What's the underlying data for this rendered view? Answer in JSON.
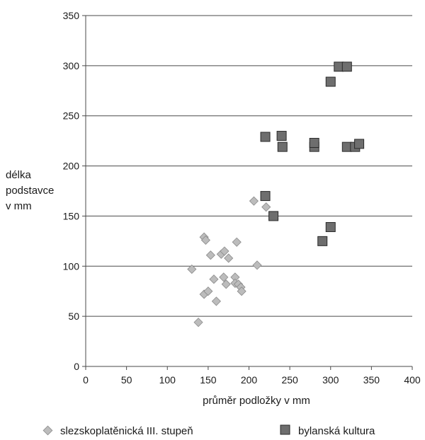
{
  "chart_data": {
    "type": "scatter",
    "xlabel": "průměr podložky v mm",
    "ylabel_lines": [
      "délka",
      "podstavce",
      "v mm"
    ],
    "xlim": [
      0,
      400
    ],
    "ylim": [
      0,
      350
    ],
    "x_ticks": [
      0,
      50,
      100,
      150,
      200,
      250,
      300,
      350,
      400
    ],
    "y_ticks": [
      0,
      50,
      100,
      150,
      200,
      250,
      300,
      350
    ],
    "grid": "horizontal",
    "legend_position": "bottom",
    "series": [
      {
        "name": "slezskoplatěnická III. stupeň",
        "marker": "diamond",
        "color": "#bcbcbc",
        "points": [
          {
            "x": 130,
            "y": 97
          },
          {
            "x": 138,
            "y": 44
          },
          {
            "x": 145,
            "y": 129
          },
          {
            "x": 147,
            "y": 126
          },
          {
            "x": 145,
            "y": 72
          },
          {
            "x": 150,
            "y": 75
          },
          {
            "x": 153,
            "y": 111
          },
          {
            "x": 157,
            "y": 87
          },
          {
            "x": 160,
            "y": 65
          },
          {
            "x": 166,
            "y": 112
          },
          {
            "x": 170,
            "y": 115
          },
          {
            "x": 169,
            "y": 89
          },
          {
            "x": 172,
            "y": 82
          },
          {
            "x": 175,
            "y": 108
          },
          {
            "x": 183,
            "y": 89
          },
          {
            "x": 183,
            "y": 83
          },
          {
            "x": 185,
            "y": 124
          },
          {
            "x": 187,
            "y": 82
          },
          {
            "x": 190,
            "y": 79
          },
          {
            "x": 191,
            "y": 75
          },
          {
            "x": 206,
            "y": 165
          },
          {
            "x": 210,
            "y": 101
          },
          {
            "x": 221,
            "y": 159
          }
        ]
      },
      {
        "name": "bylanská kultura",
        "marker": "square",
        "color": "#6e6e6e",
        "points": [
          {
            "x": 220,
            "y": 229
          },
          {
            "x": 240,
            "y": 230
          },
          {
            "x": 241,
            "y": 219
          },
          {
            "x": 280,
            "y": 219
          },
          {
            "x": 280,
            "y": 223
          },
          {
            "x": 220,
            "y": 170
          },
          {
            "x": 230,
            "y": 150
          },
          {
            "x": 300,
            "y": 284
          },
          {
            "x": 310,
            "y": 299
          },
          {
            "x": 320,
            "y": 299
          },
          {
            "x": 320,
            "y": 219
          },
          {
            "x": 330,
            "y": 219
          },
          {
            "x": 335,
            "y": 222
          },
          {
            "x": 300,
            "y": 139
          },
          {
            "x": 290,
            "y": 125
          }
        ]
      }
    ]
  }
}
